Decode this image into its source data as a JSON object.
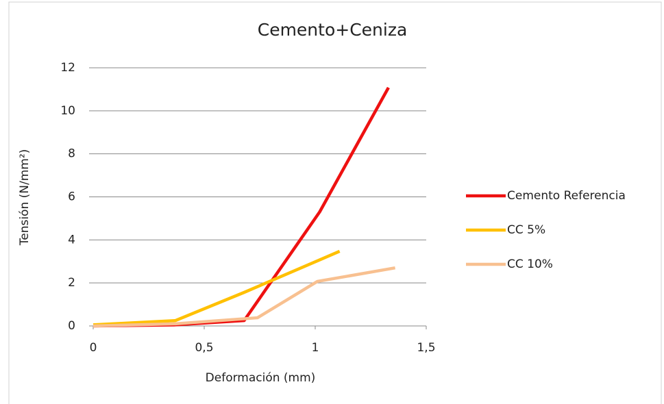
{
  "chart_data": {
    "type": "line",
    "title": "Cemento+Ceniza",
    "x_label": "Deformación (mm)",
    "y_label": "Tensión (N/mm²)",
    "xlim": [
      0,
      1.5
    ],
    "xticks": [
      0,
      {
        "value": 0.5,
        "label": "0,5"
      },
      1,
      {
        "value": 1.5,
        "label": "1,5"
      }
    ],
    "ylim": [
      0,
      12
    ],
    "yticks": [
      0,
      2,
      4,
      6,
      8,
      10,
      12
    ],
    "grid": true,
    "legend": "right",
    "series": [
      {
        "name": "Cemento Referencia",
        "color": "#ee1111",
        "x": [
          0,
          0.37,
          0.68,
          1.02,
          1.33
        ],
        "values": [
          0,
          0.05,
          0.25,
          5.3,
          11.08
        ]
      },
      {
        "name": "CC 5%",
        "color": "#ffc000",
        "x": [
          0,
          0.37,
          0.68,
          1.11
        ],
        "values": [
          0.05,
          0.25,
          1.56,
          3.47
        ]
      },
      {
        "name": "CC 10%",
        "color": "#f8c090",
        "x": [
          0,
          0.37,
          0.74,
          1.01,
          1.36
        ],
        "values": [
          0,
          0.1,
          0.38,
          2.07,
          2.7
        ]
      }
    ]
  }
}
